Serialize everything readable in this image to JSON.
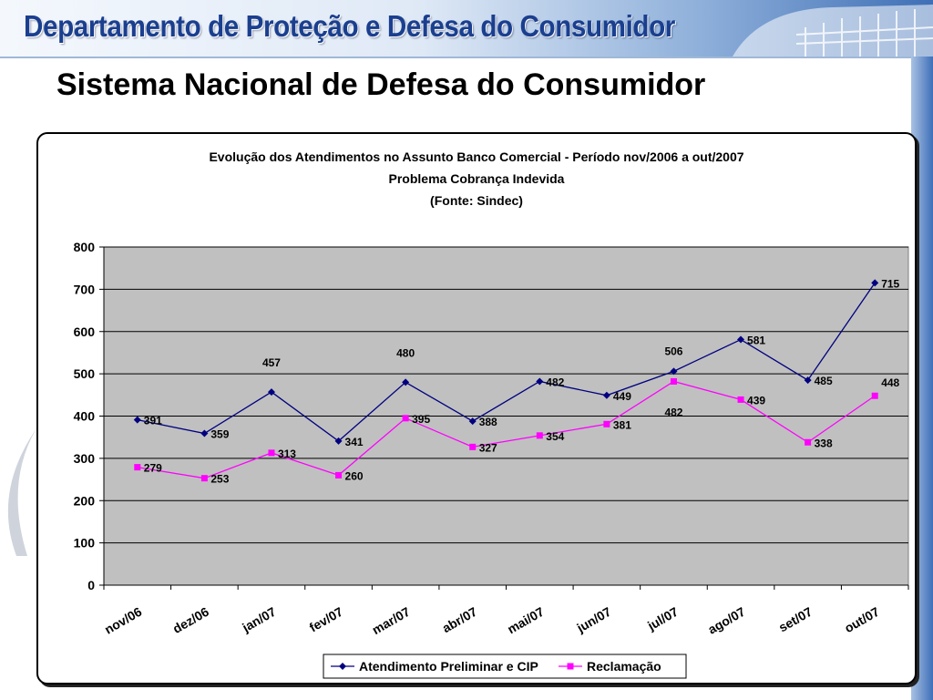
{
  "header": {
    "banner_title": "Departamento de Proteção e Defesa do Consumidor",
    "page_title": "Sistema Nacional de Defesa do Consumidor"
  },
  "colors": {
    "series1": "#000080",
    "series2": "#ff00ff",
    "plot_bg": "#c0c0c0",
    "banner_text": "#1a3f8f"
  },
  "chart_data": {
    "type": "line",
    "title": "Evolução dos Atendimentos no Assunto Banco Comercial - Período nov/2006 a out/2007",
    "subtitle": "Problema Cobrança Indevida",
    "source": "(Fonte: Sindec)",
    "categories": [
      "nov/06",
      "dez/06",
      "jan/07",
      "fev/07",
      "mar/07",
      "abr/07",
      "mai/07",
      "jun/07",
      "jul/07",
      "ago/07",
      "set/07",
      "out/07"
    ],
    "series": [
      {
        "name": "Atendimento Preliminar e CIP",
        "values": [
          391,
          359,
          457,
          341,
          480,
          388,
          482,
          449,
          506,
          581,
          485,
          715
        ],
        "marker": "diamond"
      },
      {
        "name": "Reclamação",
        "values": [
          279,
          253,
          313,
          260,
          395,
          327,
          354,
          381,
          482,
          439,
          338,
          448
        ],
        "marker": "square"
      }
    ],
    "ylim": [
      0,
      800
    ],
    "yticks": [
      0,
      100,
      200,
      300,
      400,
      500,
      600,
      700,
      800
    ],
    "grid": true,
    "legend": "bottom"
  }
}
